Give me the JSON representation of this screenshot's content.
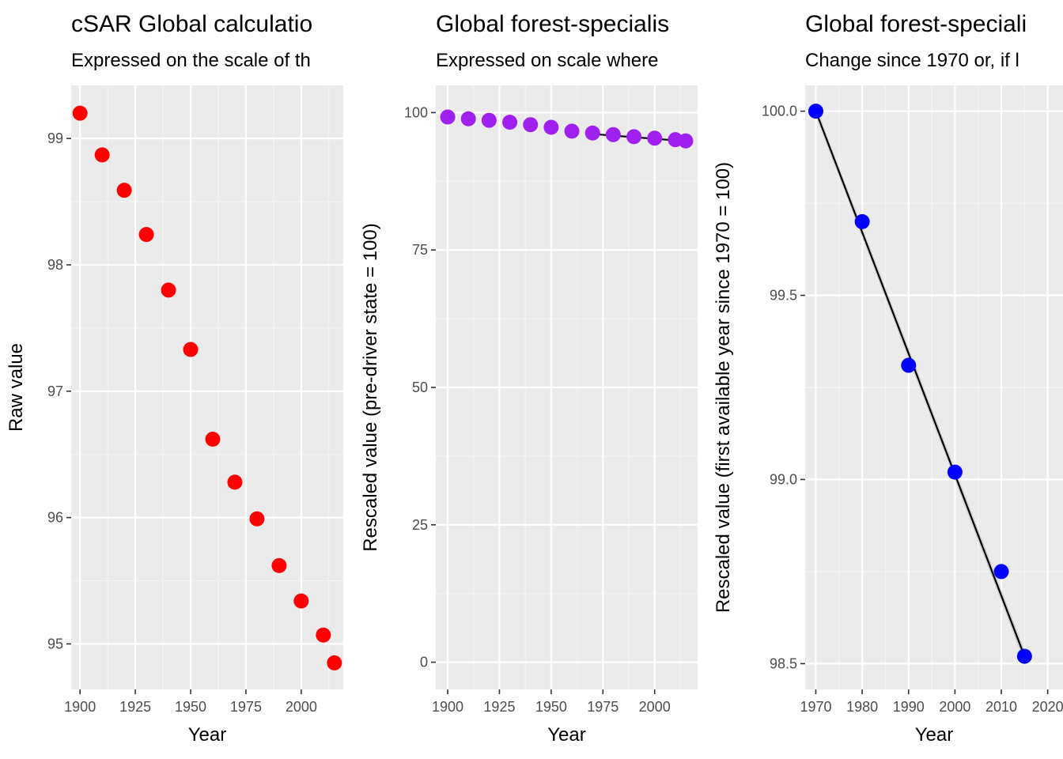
{
  "chart_data": [
    {
      "type": "scatter",
      "title": "cSAR Global calculatio",
      "subtitle": "Expressed on the scale of th",
      "xlabel": "Year",
      "ylabel": "Raw value",
      "xlim": [
        1896,
        2019
      ],
      "ylim": [
        94.64,
        99.42
      ],
      "xticks": [
        1900,
        1925,
        1950,
        1975,
        2000
      ],
      "yticks": [
        95,
        96,
        97,
        98,
        99
      ],
      "tick_labels_x": [
        "1900",
        "1925",
        "1950",
        "1975",
        "2000"
      ],
      "tick_labels_y": [
        "95",
        "96",
        "97",
        "98",
        "99"
      ],
      "point_color": "#ff0000",
      "grid": true,
      "series": [
        {
          "x": [
            1900,
            1910,
            1920,
            1930,
            1940,
            1950,
            1960,
            1970,
            1980,
            1990,
            2000,
            2010,
            2015
          ],
          "y": [
            99.2,
            98.87,
            98.59,
            98.24,
            97.8,
            97.33,
            96.62,
            96.28,
            95.99,
            95.62,
            95.34,
            95.07,
            94.85
          ]
        }
      ]
    },
    {
      "type": "scatter",
      "title": "Global forest-specialis",
      "subtitle": "Expressed on scale where",
      "xlabel": "Year",
      "ylabel": "Rescaled value (pre-driver state = 100)",
      "xlim": [
        1894.25,
        2020.75
      ],
      "ylim": [
        -4.95,
        104.95
      ],
      "xticks": [
        1900,
        1925,
        1950,
        1975,
        2000
      ],
      "yticks": [
        0,
        25,
        50,
        75,
        100
      ],
      "tick_labels_x": [
        "1900",
        "1925",
        "1950",
        "1975",
        "2000"
      ],
      "tick_labels_y": [
        "0",
        "25",
        "50",
        "75",
        "100"
      ],
      "point_color": "#a020f0",
      "grid": true,
      "series": [
        {
          "x": [
            1900,
            1910,
            1920,
            1930,
            1940,
            1950,
            1960,
            1970,
            1980,
            1990,
            2000,
            2010,
            2015
          ],
          "y": [
            99.2,
            98.87,
            98.59,
            98.24,
            97.8,
            97.33,
            96.62,
            96.28,
            95.99,
            95.62,
            95.34,
            95.07,
            94.85
          ]
        }
      ],
      "trend": {
        "x": [
          1970,
          2015
        ],
        "y": [
          96.1,
          94.8
        ]
      }
    },
    {
      "type": "scatter",
      "title": "Global forest-speciali",
      "subtitle": "Change since 1970 or, if l",
      "xlabel": "Year",
      "ylabel": "Rescaled value (first available year since 1970 = 100)",
      "xlim": [
        1967.7,
        2023.3
      ],
      "ylim": [
        98.43,
        100.07
      ],
      "xticks": [
        1970,
        1980,
        1990,
        2000,
        2010,
        2020
      ],
      "yticks": [
        98.5,
        99.0,
        99.5,
        100.0
      ],
      "tick_labels_x": [
        "1970",
        "1980",
        "1990",
        "2000",
        "2010",
        "2020"
      ],
      "tick_labels_y": [
        "98.5",
        "99.0",
        "99.5",
        "100.0"
      ],
      "point_color": "#0000ff",
      "grid": true,
      "series": [
        {
          "x": [
            1970,
            1980,
            1990,
            2000,
            2010,
            2015
          ],
          "y": [
            100.0,
            99.7,
            99.31,
            99.02,
            98.75,
            98.52
          ]
        }
      ],
      "trend": {
        "x": [
          1970,
          2015
        ],
        "y": [
          100.0,
          98.52
        ]
      }
    }
  ]
}
